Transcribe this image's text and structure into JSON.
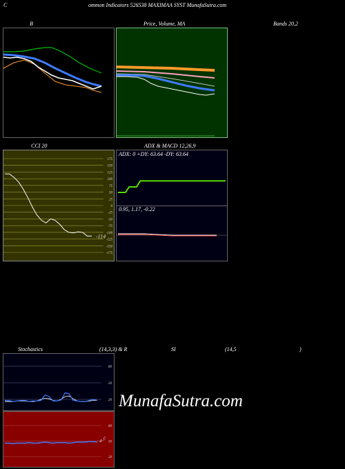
{
  "header": {
    "c": "C",
    "title": "ommon  Indicators 526538  MAXIMAA SYST MunafaSutra.com"
  },
  "labels": {
    "b": "B",
    "price_ma": "Price,  Volume,  MA",
    "bands": "Bands 20,2",
    "cci": "CCI 20",
    "adx_macd": "ADX  & MACD 12,26,9",
    "stoch": "Stochastics",
    "stoch_params": "(14,3,3) & R",
    "si": "SI",
    "rsi_params": "(14,5",
    "rsi_close": ")"
  },
  "cci": {
    "ticks": [
      "175",
      "150",
      "125",
      "100",
      "75",
      "50",
      "25",
      "0",
      "-25",
      "-50",
      "-75",
      "-100",
      "-125",
      "-150",
      "-175"
    ],
    "value_label": "-114",
    "series": [
      118,
      118,
      105,
      88,
      62,
      30,
      -5,
      -35,
      -55,
      -65,
      -50,
      -55,
      -70,
      -90,
      -100,
      -102,
      -98,
      -100,
      -114,
      -114
    ]
  },
  "adx": {
    "text": "ADX: 0  +DY: 63.64  -DY: 63.64",
    "series": [
      29,
      29,
      29,
      42,
      42,
      42,
      56,
      56,
      56,
      56,
      56,
      56,
      56,
      56,
      56,
      56,
      56,
      56,
      56,
      56,
      56,
      56,
      56,
      56,
      56,
      56,
      56,
      56,
      56,
      56
    ]
  },
  "macd": {
    "text": "0.95,  1.17,  -0.22"
  },
  "stoch": {
    "ticks": [
      "80",
      "50",
      "20"
    ],
    "series": [
      18,
      18,
      16,
      17,
      18,
      18,
      16,
      17,
      17,
      18,
      28,
      25,
      17,
      17,
      19,
      32,
      30,
      18,
      17,
      16,
      16,
      18,
      20,
      18
    ],
    "signal": [
      16,
      16,
      16,
      17,
      17,
      17,
      16,
      16,
      17,
      20,
      22,
      21,
      18,
      17,
      20,
      25,
      26,
      21,
      17,
      16,
      16,
      17,
      18,
      18
    ]
  },
  "rsi": {
    "ticks": [
      "80",
      "50",
      "20"
    ],
    "series": [
      46,
      46,
      45,
      46,
      46,
      46,
      47,
      46,
      46,
      47,
      48,
      47,
      46,
      47,
      47,
      47,
      46,
      47,
      48,
      48,
      48,
      49,
      49,
      48
    ],
    "value_label": "48.27"
  },
  "watermark": "MunafaSutra.com"
}
